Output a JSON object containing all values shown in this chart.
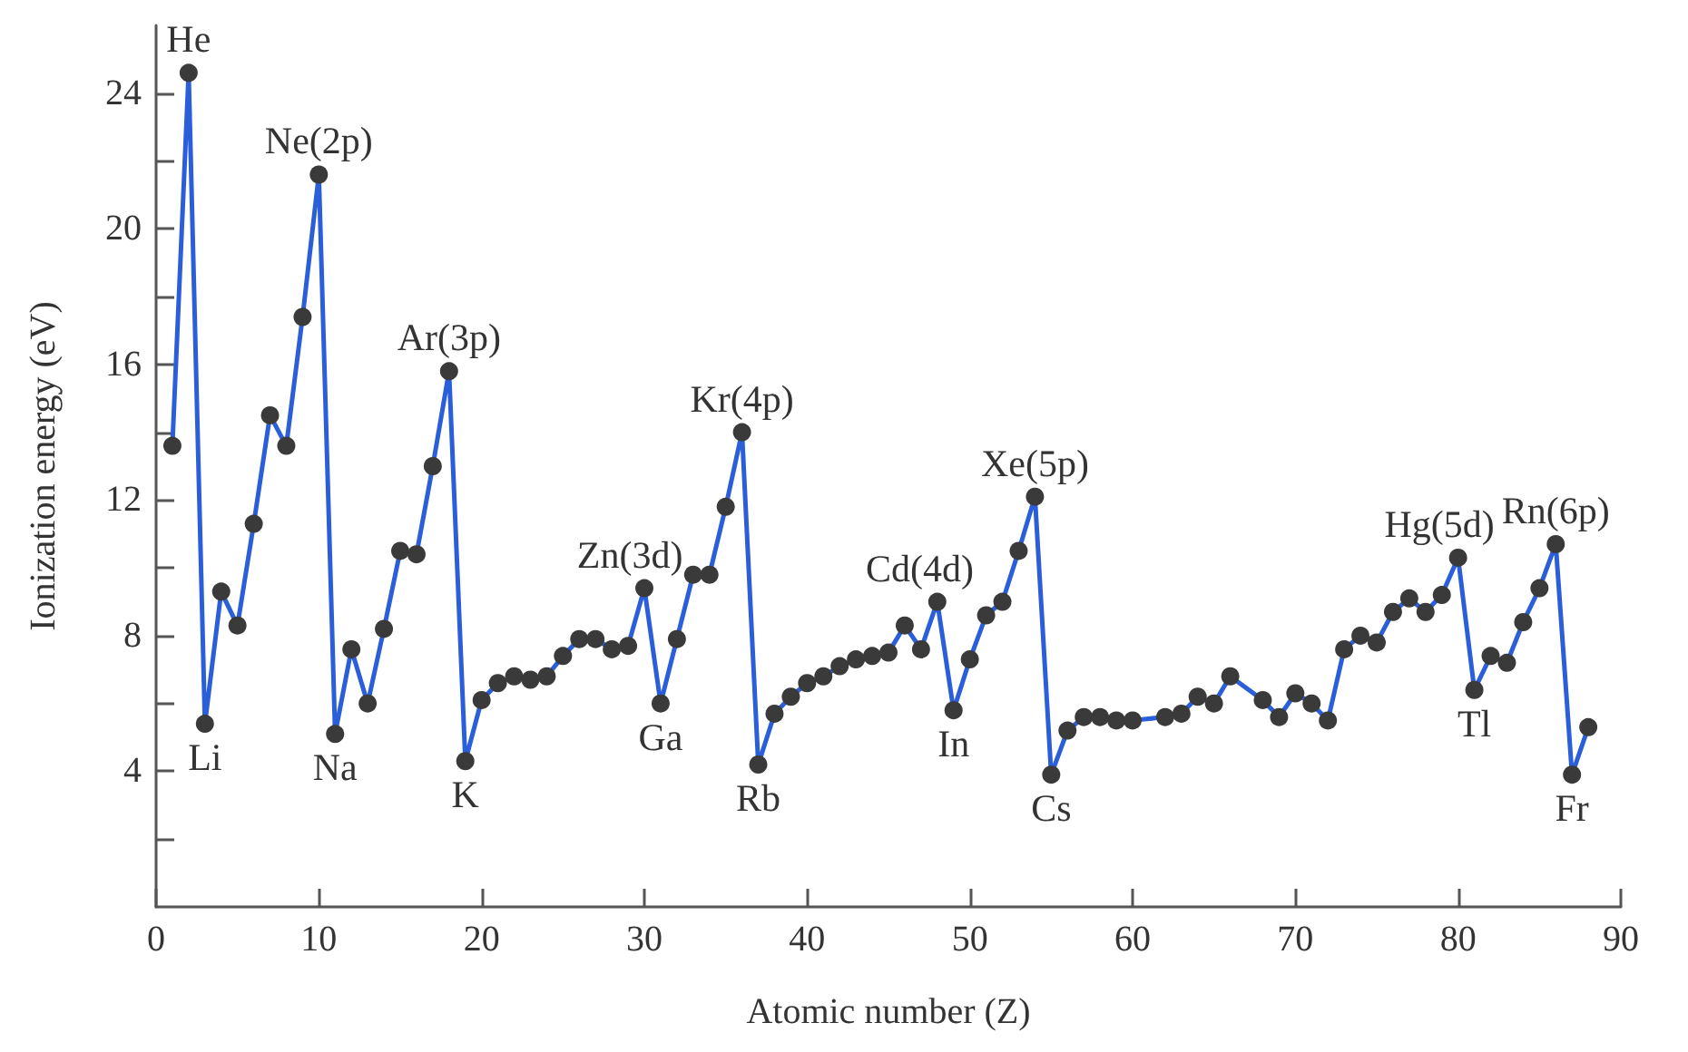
{
  "chart_data": {
    "type": "line",
    "xlabel": "Atomic number (Z)",
    "ylabel": "Ionization energy (eV)",
    "x": [
      1,
      2,
      3,
      4,
      5,
      6,
      7,
      8,
      9,
      10,
      11,
      12,
      13,
      14,
      15,
      16,
      17,
      18,
      19,
      20,
      21,
      22,
      23,
      24,
      25,
      26,
      27,
      28,
      29,
      30,
      31,
      32,
      33,
      34,
      35,
      36,
      37,
      38,
      39,
      40,
      41,
      42,
      43,
      44,
      45,
      46,
      47,
      48,
      49,
      50,
      51,
      52,
      53,
      54,
      55,
      56,
      57,
      58,
      59,
      60,
      62,
      63,
      64,
      65,
      66,
      68,
      69,
      70,
      71,
      72,
      73,
      74,
      75,
      76,
      77,
      78,
      79,
      80,
      81,
      82,
      83,
      84,
      85,
      86,
      87,
      88
    ],
    "series": [
      {
        "color": "#2b5fd9",
        "values": [
          13.6,
          24.6,
          5.4,
          9.3,
          8.3,
          11.3,
          14.5,
          13.6,
          17.4,
          21.6,
          5.1,
          7.6,
          6.0,
          8.2,
          10.5,
          10.4,
          13.0,
          15.8,
          4.3,
          6.1,
          6.6,
          6.8,
          6.7,
          6.8,
          7.4,
          7.9,
          7.9,
          7.6,
          7.7,
          9.4,
          6.0,
          7.9,
          9.8,
          9.8,
          11.8,
          14.0,
          4.2,
          5.7,
          6.2,
          6.6,
          6.8,
          7.1,
          7.3,
          7.4,
          7.5,
          8.3,
          7.6,
          9.0,
          5.8,
          7.3,
          8.6,
          9.0,
          10.5,
          12.1,
          3.9,
          5.2,
          5.6,
          5.6,
          5.5,
          5.5,
          5.6,
          5.7,
          6.2,
          6.0,
          6.8,
          6.1,
          5.6,
          6.3,
          6.0,
          5.5,
          7.6,
          8.0,
          7.8,
          8.7,
          9.1,
          8.7,
          9.2,
          10.3,
          6.4,
          7.4,
          7.2,
          8.4,
          9.4,
          10.7,
          3.9,
          5.3
        ]
      }
    ],
    "xlim": [
      0,
      90
    ],
    "xticks": [
      0,
      10,
      20,
      30,
      40,
      50,
      60,
      70,
      80,
      90
    ],
    "ylim": [
      0,
      26
    ],
    "yticks": [
      {
        "value": 2,
        "label": null
      },
      4,
      {
        "value": 6,
        "label": null
      },
      8,
      {
        "value": 10,
        "label": null
      },
      12,
      {
        "value": 14,
        "label": null
      },
      16,
      {
        "value": 18,
        "label": null
      },
      20,
      {
        "value": 22,
        "label": null
      },
      24
    ],
    "marker": "circle",
    "line_style": "solid",
    "grid": false,
    "annotations": [
      {
        "text": "He",
        "x": 2,
        "y": 24.6
      },
      {
        "text": "Li",
        "x": 3,
        "y": 5.4
      },
      {
        "text": "Ne(2p)",
        "x": 10,
        "y": 21.6
      },
      {
        "text": "Na",
        "x": 11,
        "y": 5.1
      },
      {
        "text": "Ar(3p)",
        "x": 18,
        "y": 15.8
      },
      {
        "text": "K",
        "x": 19,
        "y": 4.3
      },
      {
        "text": "Zn(3d)",
        "x": 30,
        "y": 9.4
      },
      {
        "text": "Ga",
        "x": 31,
        "y": 6.0
      },
      {
        "text": "Kr(4p)",
        "x": 36,
        "y": 14.0
      },
      {
        "text": "Rb",
        "x": 37,
        "y": 4.2
      },
      {
        "text": "Cd(4d)",
        "x": 48,
        "y": 9.0
      },
      {
        "text": "In",
        "x": 49,
        "y": 5.8
      },
      {
        "text": "Xe(5p)",
        "x": 54,
        "y": 12.1
      },
      {
        "text": "Cs",
        "x": 55,
        "y": 3.9
      },
      {
        "text": "Hg(5d)",
        "x": 80,
        "y": 10.3
      },
      {
        "text": "Tl",
        "x": 81,
        "y": 6.4
      },
      {
        "text": "Rn(6p)",
        "x": 86,
        "y": 10.7
      },
      {
        "text": "Fr",
        "x": 87,
        "y": 3.9
      }
    ]
  }
}
